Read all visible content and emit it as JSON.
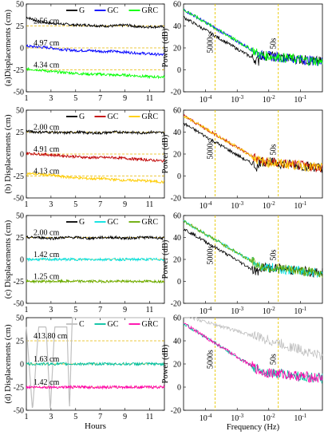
{
  "chart_data": [
    {
      "type": "line",
      "panel": "a-left",
      "ylabel": "(a)Displacements (cm)",
      "xlabel": "",
      "xlim": [
        1,
        12.2
      ],
      "ylim": [
        -50,
        50
      ],
      "xticks": [
        1,
        3,
        5,
        7,
        9,
        11
      ],
      "yticks": [
        -50,
        -25,
        0,
        25,
        50
      ],
      "legend": [
        "G",
        "GC",
        "GRC"
      ],
      "colors": [
        "#000000",
        "#0000ff",
        "#00ff00"
      ],
      "annotations": [
        "2.56 cm",
        "4.97 cm",
        "4.34 cm"
      ],
      "series": [
        {
          "name": "G",
          "offset": 25,
          "values": [
            35,
            30,
            28,
            27,
            26,
            26,
            25,
            25,
            26,
            24,
            24,
            24
          ]
        },
        {
          "name": "GC",
          "offset": 0,
          "values": [
            2,
            1,
            0,
            -2,
            -3,
            -3,
            -4,
            -4,
            -5,
            -6,
            -7,
            -8
          ]
        },
        {
          "name": "GRC",
          "offset": -25,
          "values": [
            -24,
            -25,
            -27,
            -28,
            -29,
            -30,
            -30,
            -31,
            -31,
            -32,
            -33,
            -33
          ]
        }
      ]
    },
    {
      "type": "line",
      "panel": "a-right",
      "ylabel": "Power (dB)",
      "xlabel": "",
      "xscale": "log",
      "xlim": [
        2e-05,
        0.5
      ],
      "ylim": [
        -20,
        60
      ],
      "yticks": [
        -20,
        0,
        20,
        40,
        60
      ],
      "xticks": [
        "10^-4",
        "10^-3",
        "10^-2",
        "10^-1"
      ],
      "vlines": [
        {
          "x": 0.0002,
          "label": "5000s"
        },
        {
          "x": 0.02,
          "label": "50s"
        }
      ],
      "colors": [
        "#000000",
        "#0000ff",
        "#00ff00"
      ]
    },
    {
      "type": "line",
      "panel": "b-left",
      "ylabel": "(b) Displacements (cm)",
      "xlim": [
        1,
        12.2
      ],
      "ylim": [
        -50,
        50
      ],
      "xticks": [
        1,
        3,
        5,
        7,
        9,
        11
      ],
      "yticks": [
        -50,
        -25,
        0,
        25,
        50
      ],
      "legend": [
        "G",
        "GC",
        "GRC"
      ],
      "colors": [
        "#000000",
        "#c00000",
        "#ffcc00"
      ],
      "annotations": [
        "2.00 cm",
        "4.91 cm",
        "4.13 cm"
      ],
      "series": [
        {
          "name": "G",
          "values": [
            26,
            25,
            25,
            24,
            25,
            24,
            24,
            25,
            25,
            24,
            25,
            24
          ]
        },
        {
          "name": "GC",
          "values": [
            1,
            0,
            -1,
            -2,
            -3,
            -4,
            -4,
            -4,
            -5,
            -6,
            -7,
            -8
          ]
        },
        {
          "name": "GRC",
          "values": [
            -22,
            -23,
            -24,
            -26,
            -27,
            -28,
            -28,
            -29,
            -30,
            -30,
            -31,
            -32
          ]
        }
      ]
    },
    {
      "type": "line",
      "panel": "b-right",
      "ylabel": "Power (dB)",
      "xscale": "log",
      "ylim": [
        -20,
        60
      ],
      "yticks": [
        -20,
        0,
        20,
        40,
        60
      ],
      "xticks": [
        "10^-4",
        "10^-3",
        "10^-2",
        "10^-1"
      ],
      "vlines": [
        {
          "x": 0.0002,
          "label": "5000s"
        },
        {
          "x": 0.02,
          "label": "50s"
        }
      ],
      "colors": [
        "#000000",
        "#c00000",
        "#ffcc00"
      ]
    },
    {
      "type": "line",
      "panel": "c-left",
      "ylabel": "(c) Displacements (cm)",
      "xlim": [
        1,
        12.2
      ],
      "ylim": [
        -50,
        50
      ],
      "xticks": [
        1,
        3,
        5,
        7,
        9,
        11
      ],
      "yticks": [
        -50,
        -25,
        0,
        25,
        50
      ],
      "legend": [
        "G",
        "GC",
        "GRC"
      ],
      "colors": [
        "#000000",
        "#00e0e0",
        "#66aa00"
      ],
      "annotations": [
        "2.00 cm",
        "1.42 cm",
        "1.25 cm"
      ],
      "series": [
        {
          "name": "G",
          "values": [
            25,
            25,
            24,
            25,
            25,
            24,
            25,
            25,
            24,
            25,
            25,
            24
          ]
        },
        {
          "name": "GC",
          "values": [
            0,
            0,
            0,
            0,
            0,
            0,
            0,
            0,
            0,
            0,
            0,
            0
          ]
        },
        {
          "name": "GRC",
          "values": [
            -25,
            -25,
            -25,
            -25,
            -25,
            -25,
            -25,
            -25,
            -25,
            -25,
            -25,
            -25
          ]
        }
      ]
    },
    {
      "type": "line",
      "panel": "c-right",
      "ylabel": "Power (dB)",
      "xscale": "log",
      "ylim": [
        -20,
        60
      ],
      "yticks": [
        -20,
        0,
        20,
        40,
        60
      ],
      "xticks": [
        "10^-4",
        "10^-3",
        "10^-2",
        "10^-1"
      ],
      "vlines": [
        {
          "x": 0.0002,
          "label": "5000s"
        },
        {
          "x": 0.02,
          "label": "50s"
        }
      ],
      "colors": [
        "#000000",
        "#00e0e0",
        "#66aa00"
      ]
    },
    {
      "type": "line",
      "panel": "d-left",
      "ylabel": "(d) Displacements (cm)",
      "xlabel": "Hours",
      "xlim": [
        1,
        12.2
      ],
      "ylim": [
        -50,
        50
      ],
      "xticks": [
        1,
        3,
        5,
        7,
        9,
        11
      ],
      "yticks": [
        -50,
        -25,
        0,
        25,
        50
      ],
      "legend": [
        "C",
        "GC",
        "GRC"
      ],
      "colors": [
        "#c0c0c0",
        "#00c0a0",
        "#ff00aa"
      ],
      "annotations": [
        "413.80 cm",
        "1.63 cm",
        "1.42 cm"
      ],
      "series": [
        {
          "name": "GC",
          "values": [
            0,
            0,
            0,
            0,
            0,
            0,
            0,
            0,
            0,
            0,
            0,
            0
          ]
        },
        {
          "name": "GRC",
          "values": [
            -25,
            -25,
            -25,
            -25,
            -25,
            -25,
            -25,
            -25,
            -25,
            -25,
            -25,
            -25
          ]
        }
      ]
    },
    {
      "type": "line",
      "panel": "d-right",
      "ylabel": "Power (dB)",
      "xlabel": "Frequency (Hz)",
      "xscale": "log",
      "ylim": [
        -20,
        60
      ],
      "yticks": [
        -20,
        0,
        20,
        40,
        60
      ],
      "xticks": [
        "10^-4",
        "10^-3",
        "10^-2",
        "10^-1"
      ],
      "vlines": [
        {
          "x": 0.0002,
          "label": "5000s"
        },
        {
          "x": 0.02,
          "label": "50s"
        }
      ],
      "colors": [
        "#c0c0c0",
        "#00c0a0",
        "#ff00aa"
      ]
    }
  ]
}
